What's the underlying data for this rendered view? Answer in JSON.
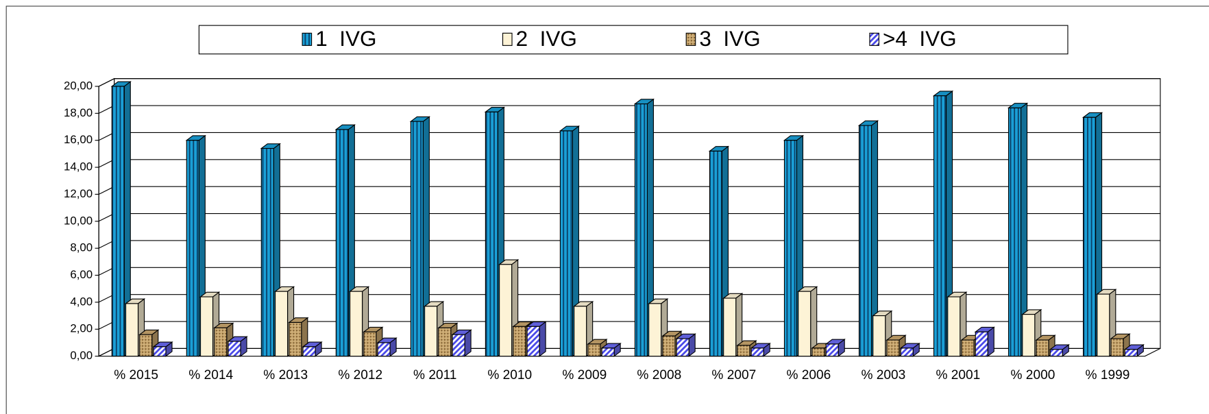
{
  "chart_data": {
    "type": "bar3d",
    "categories": [
      "% 2015",
      "% 2014",
      "% 2013",
      "% 2012",
      "% 2011",
      "% 2010",
      "% 2009",
      "% 2008",
      "% 2007",
      "% 2006",
      "% 2003",
      "% 2001",
      "% 2000",
      "% 1999"
    ],
    "series": [
      {
        "name": "1  IVG",
        "color": "#1a9fd6",
        "values": [
          20.0,
          16.0,
          15.4,
          16.8,
          17.4,
          18.1,
          16.7,
          18.7,
          15.2,
          16.0,
          17.1,
          19.3,
          18.4,
          17.7
        ]
      },
      {
        "name": "2  IVG",
        "color": "#fdf3d6",
        "values": [
          3.9,
          4.4,
          4.8,
          4.8,
          3.7,
          6.8,
          3.7,
          3.9,
          4.3,
          4.8,
          3.0,
          4.4,
          3.1,
          4.6
        ]
      },
      {
        "name": "3  IVG",
        "color": "#c8a66e",
        "values": [
          1.6,
          2.1,
          2.5,
          1.8,
          2.1,
          2.2,
          0.9,
          1.5,
          0.8,
          0.6,
          1.2,
          1.2,
          1.2,
          1.3
        ]
      },
      {
        "name": ">4  IVG",
        "color": "#6a6af0",
        "values": [
          0.7,
          1.1,
          0.7,
          1.0,
          1.6,
          2.2,
          0.6,
          1.3,
          0.6,
          0.9,
          0.6,
          1.8,
          0.5,
          0.5
        ]
      }
    ],
    "ylim": [
      0,
      20
    ],
    "yticks": [
      {
        "value": 0,
        "label": "0,00"
      },
      {
        "value": 2,
        "label": "2,00"
      },
      {
        "value": 4,
        "label": "4,00"
      },
      {
        "value": 6,
        "label": "6,00"
      },
      {
        "value": 8,
        "label": "8,00"
      },
      {
        "value": 10,
        "label": "10,00"
      },
      {
        "value": 12,
        "label": "12,00"
      },
      {
        "value": 14,
        "label": "14,00"
      },
      {
        "value": 16,
        "label": "16,00"
      },
      {
        "value": 18,
        "label": "18,00"
      },
      {
        "value": 20,
        "label": "20,00"
      }
    ],
    "grid": true,
    "legend": "top"
  }
}
